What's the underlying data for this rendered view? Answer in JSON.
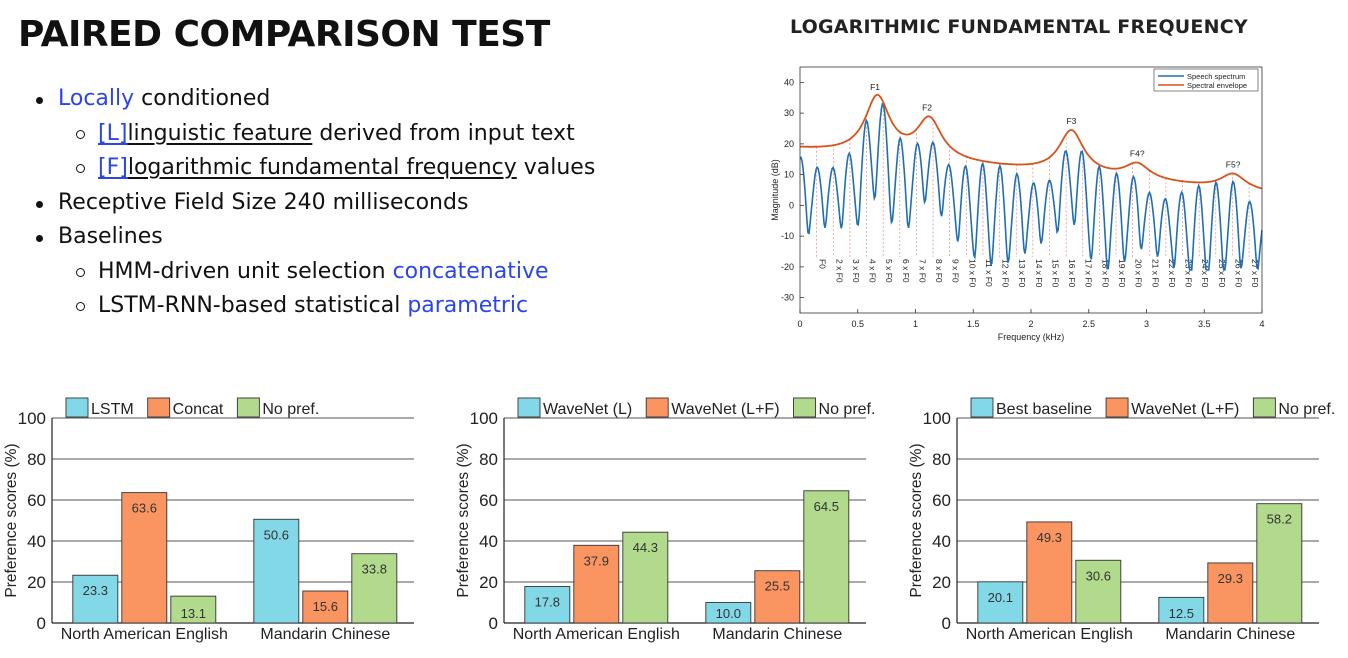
{
  "slide": {
    "title": "PAIRED COMPARISON TEST"
  },
  "bullets": {
    "b1": {
      "highlight": "Locally",
      "rest": " conditioned"
    },
    "b1_1": {
      "tag": "[L]",
      "term": "linguistic feature",
      "rest": " derived from input text"
    },
    "b1_2": {
      "tag": "[F]",
      "term": "logarithmic fundamental frequency",
      "rest": " values"
    },
    "b2": {
      "text": "Receptive Field Size 240 milliseconds"
    },
    "b3": {
      "text": "Baselines"
    },
    "b3_1": {
      "text": "HMM-driven unit selection ",
      "highlight": "concatenative"
    },
    "b3_2": {
      "text": "LSTM-RNN-based statistical ",
      "highlight": "parametric"
    }
  },
  "spectrum_figure": {
    "title": "LOGARITHMIC FUNDAMENTAL FREQUENCY",
    "xlabel": "Frequency (kHz)",
    "ylabel": "Magnitude (dB)",
    "xticks": [
      "0",
      "0.5",
      "1",
      "1.5",
      "2",
      "2.5",
      "3",
      "3.5",
      "4"
    ],
    "yticks": [
      "40",
      "30",
      "20",
      "10",
      "0",
      "-10",
      "-20",
      "-30"
    ],
    "legend": [
      "Speech spectrum",
      "Spectral envelope"
    ],
    "colors": {
      "spectrum": "#1f6fb2",
      "envelope": "#d95319",
      "harmonic_lines": "#e57373"
    },
    "formant_labels": [
      "F1",
      "F2",
      "F3",
      "F4?",
      "F5?"
    ],
    "harmonic_labels": [
      "F0",
      "2 x F0",
      "3 x F0",
      "4 x F0",
      "5 x F0",
      "6 x F0",
      "7 x F0",
      "8 x F0",
      "9 x F0",
      "10 x F0",
      "11 x F0",
      "12 x F0",
      "13 x F0",
      "14 x F0",
      "15 x F0",
      "16 x F0",
      "17 x F0",
      "18 x F0",
      "19 x F0",
      "20 x F0",
      "21 x F0",
      "22 x F0",
      "23 x F0",
      "24 x F0",
      "25 x F0",
      "26 x F0",
      "27 x F0"
    ]
  },
  "chart_data": [
    {
      "type": "bar",
      "categories": [
        "North American English",
        "Mandarin Chinese"
      ],
      "series": [
        {
          "name": "LSTM",
          "values": [
            23.3,
            50.6
          ],
          "color": "#82d8e6"
        },
        {
          "name": "Concat",
          "values": [
            63.6,
            15.6
          ],
          "color": "#fa9562"
        },
        {
          "name": "No pref.",
          "values": [
            13.1,
            33.8
          ],
          "color": "#b2da8c"
        }
      ],
      "ylabel": "Preference scores (%)",
      "yticks": [
        "0",
        "20",
        "40",
        "60",
        "80",
        "100"
      ],
      "ylim": [
        0,
        100
      ]
    },
    {
      "type": "bar",
      "categories": [
        "North American English",
        "Mandarin Chinese"
      ],
      "series": [
        {
          "name": "WaveNet (L)",
          "values": [
            17.8,
            10.0
          ],
          "color": "#82d8e6"
        },
        {
          "name": "WaveNet (L+F)",
          "values": [
            37.9,
            25.5
          ],
          "color": "#fa9562"
        },
        {
          "name": "No pref.",
          "values": [
            44.3,
            64.5
          ],
          "color": "#b2da8c"
        }
      ],
      "ylabel": "Preference scores (%)",
      "yticks": [
        "0",
        "20",
        "40",
        "60",
        "80",
        "100"
      ],
      "ylim": [
        0,
        100
      ]
    },
    {
      "type": "bar",
      "categories": [
        "North American English",
        "Mandarin Chinese"
      ],
      "series": [
        {
          "name": "Best baseline",
          "values": [
            20.1,
            12.5
          ],
          "color": "#82d8e6"
        },
        {
          "name": "WaveNet (L+F)",
          "values": [
            49.3,
            29.3
          ],
          "color": "#fa9562"
        },
        {
          "name": "No pref.",
          "values": [
            30.6,
            58.2
          ],
          "color": "#b2da8c"
        }
      ],
      "ylabel": "Preference scores (%)",
      "yticks": [
        "0",
        "20",
        "40",
        "60",
        "80",
        "100"
      ],
      "ylim": [
        0,
        100
      ]
    }
  ]
}
